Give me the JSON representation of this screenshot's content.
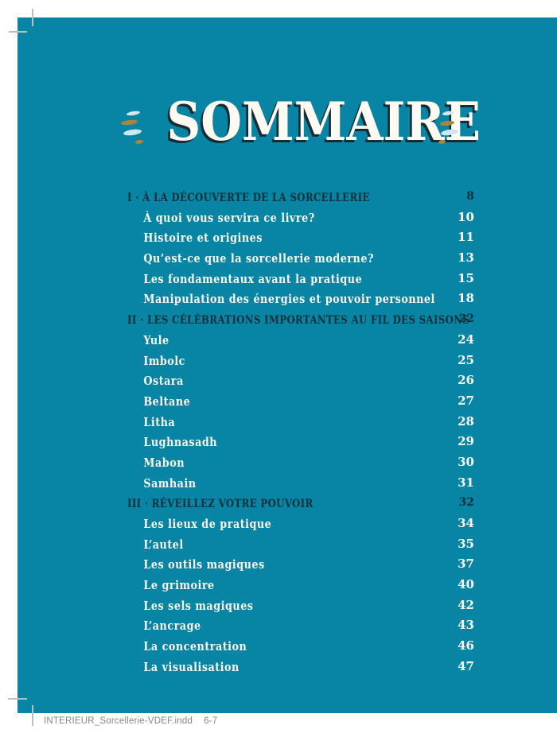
{
  "page": {
    "title": "SOMMAIRE",
    "background_color": "#0885a4",
    "section_text_color": "#14303b",
    "entry_text_color": "#fbf7ec",
    "dash_blue_color": "#cfe7ef",
    "dash_gold_color": "#a9853c"
  },
  "slug": {
    "filename": "INTERIEUR_Sorcellerie-VDEF.indd",
    "pages": "6-7"
  },
  "toc": {
    "entries": [
      {
        "type": "section",
        "label": "I · À LA DÉCOUVERTE DE LA SORCELLERIE",
        "page": "8"
      },
      {
        "type": "sub",
        "label": "À quoi vous servira ce livre?",
        "page": "10"
      },
      {
        "type": "sub",
        "label": "Histoire et origines",
        "page": "11"
      },
      {
        "type": "sub",
        "label": "Qu’est-ce que la sorcellerie moderne?",
        "page": "13"
      },
      {
        "type": "sub",
        "label": "Les fondamentaux avant la pratique",
        "page": "15"
      },
      {
        "type": "sub",
        "label": "Manipulation des énergies et pouvoir personnel",
        "page": "18"
      },
      {
        "type": "section",
        "label": "II · LES CÉLÉBRATIONS IMPORTANTES AU FIL DES SAISONS",
        "page": "22"
      },
      {
        "type": "sub",
        "label": "Yule",
        "page": "24"
      },
      {
        "type": "sub",
        "label": "Imbolc",
        "page": "25"
      },
      {
        "type": "sub",
        "label": "Ostara",
        "page": "26"
      },
      {
        "type": "sub",
        "label": "Beltane",
        "page": "27"
      },
      {
        "type": "sub",
        "label": "Litha",
        "page": "28"
      },
      {
        "type": "sub",
        "label": "Lughnasadh",
        "page": "29"
      },
      {
        "type": "sub",
        "label": "Mabon",
        "page": "30"
      },
      {
        "type": "sub",
        "label": "Samhain",
        "page": "31"
      },
      {
        "type": "section",
        "label": "III · RÉVEILLEZ VOTRE POUVOIR",
        "page": "32"
      },
      {
        "type": "sub",
        "label": "Les lieux de pratique",
        "page": "34"
      },
      {
        "type": "sub",
        "label": "L’autel",
        "page": "35"
      },
      {
        "type": "sub",
        "label": "Les outils magiques",
        "page": "37"
      },
      {
        "type": "sub",
        "label": "Le grimoire",
        "page": "40"
      },
      {
        "type": "sub",
        "label": "Les sels magiques",
        "page": "42"
      },
      {
        "type": "sub",
        "label": "L’ancrage",
        "page": "43"
      },
      {
        "type": "sub",
        "label": "La concentration",
        "page": "46"
      },
      {
        "type": "sub",
        "label": "La visualisation",
        "page": "47"
      }
    ]
  }
}
